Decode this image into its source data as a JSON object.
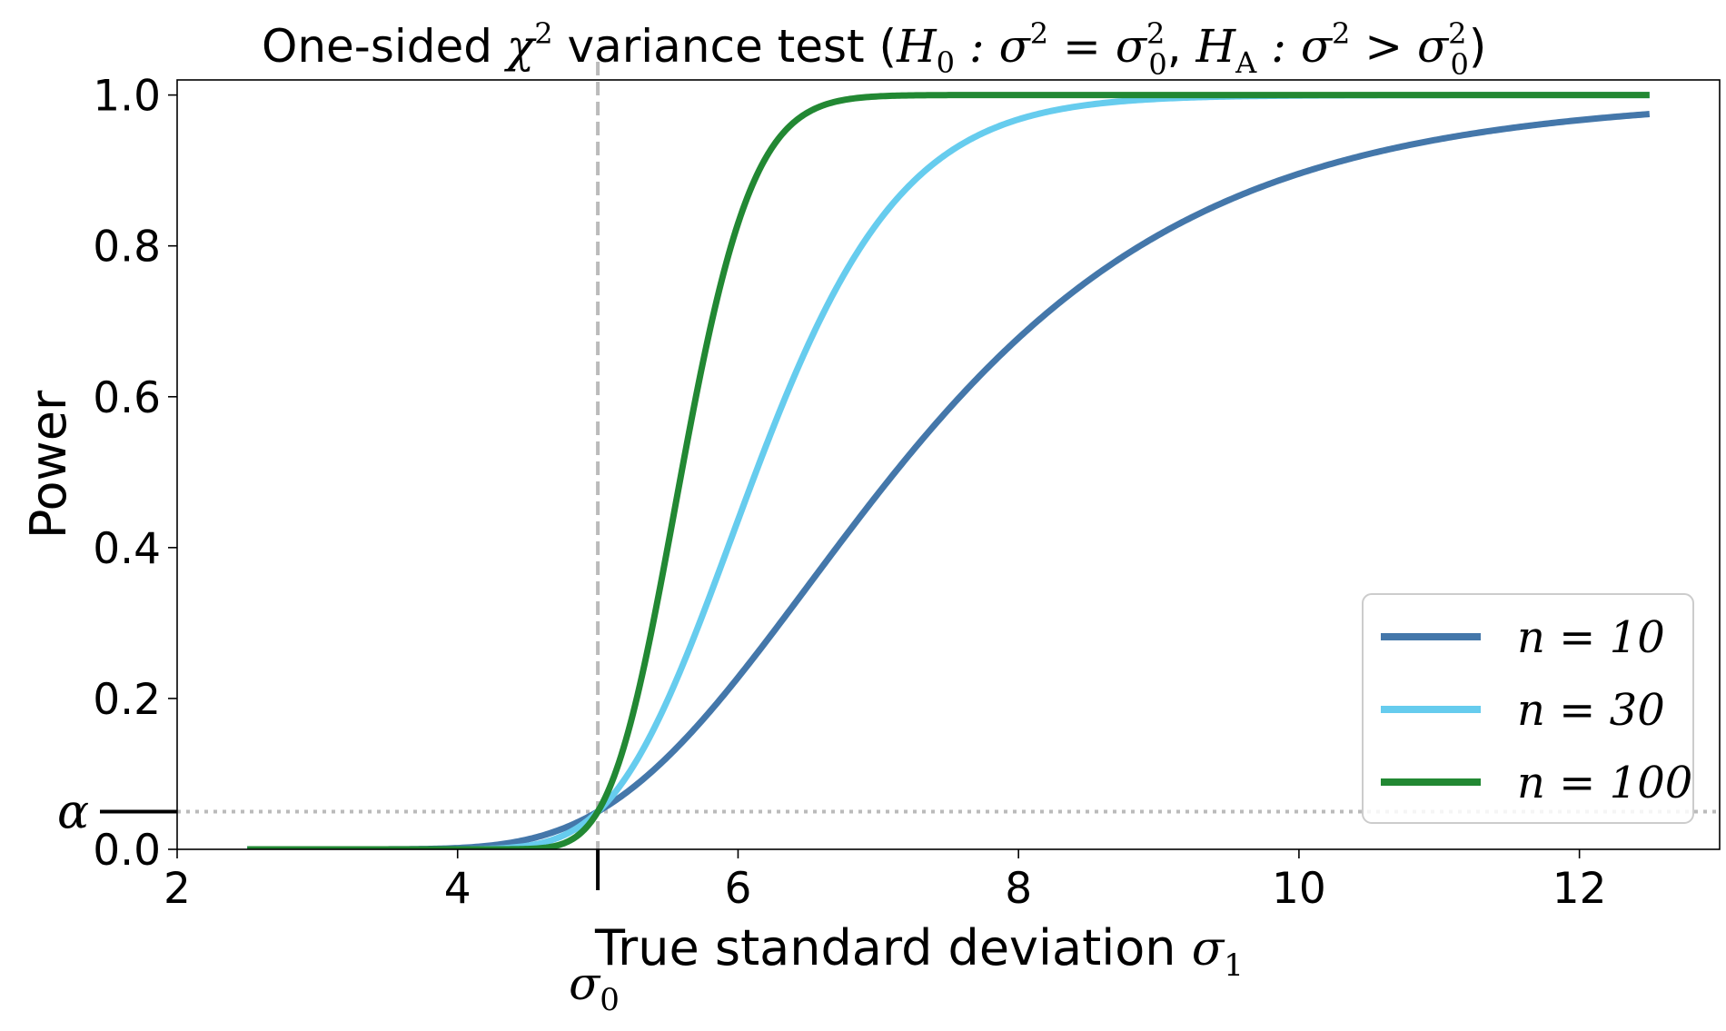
{
  "chart_data": {
    "type": "line",
    "title": "One-sided χ² variance test  (H₀ : σ² = σ₀², Hₐ : σ² > σ₀²)",
    "title_parts": {
      "prefix": "One-sided ",
      "chi": "χ",
      "chi_exp": "2",
      "mid": " variance test  (",
      "h0": "H",
      "h0_sub": "0",
      "h0_body": " : σ",
      "h0_exp": "2",
      "h0_eq": " = σ",
      "h0_rhs_sub": "0",
      "h0_rhs_exp": "2",
      "sep": ", ",
      "ha": "H",
      "ha_sub": "A",
      "ha_body": " : σ",
      "ha_exp": "2",
      "ha_gt": " > σ",
      "ha_rhs_sub": "0",
      "ha_rhs_exp": "2",
      "close": ")"
    },
    "xlabel": "True standard deviation ",
    "xlabel_sym": "σ",
    "xlabel_sub": "1",
    "ylabel": "Power",
    "xlim": [
      2,
      13
    ],
    "ylim": [
      0,
      1.02
    ],
    "xticks": [
      2,
      4,
      6,
      8,
      10,
      12
    ],
    "yticks": [
      "0.0",
      "0.2",
      "0.4",
      "0.6",
      "0.8",
      "1.0"
    ],
    "sigma0": 5,
    "sigma0_label": "σ",
    "sigma0_sub": "0",
    "alpha": 0.05,
    "alpha_label": "α",
    "x_start": 2.5,
    "x_end": 12.5,
    "legend_position": "lower right",
    "grid": false,
    "series": [
      {
        "name": "n = 10",
        "n": 10,
        "color": "#4477aa"
      },
      {
        "name": "n = 30",
        "n": 30,
        "color": "#66ccee"
      },
      {
        "name": "n = 100",
        "n": 100,
        "color": "#228833"
      }
    ],
    "reference_line_color": "#bbbbbb"
  }
}
